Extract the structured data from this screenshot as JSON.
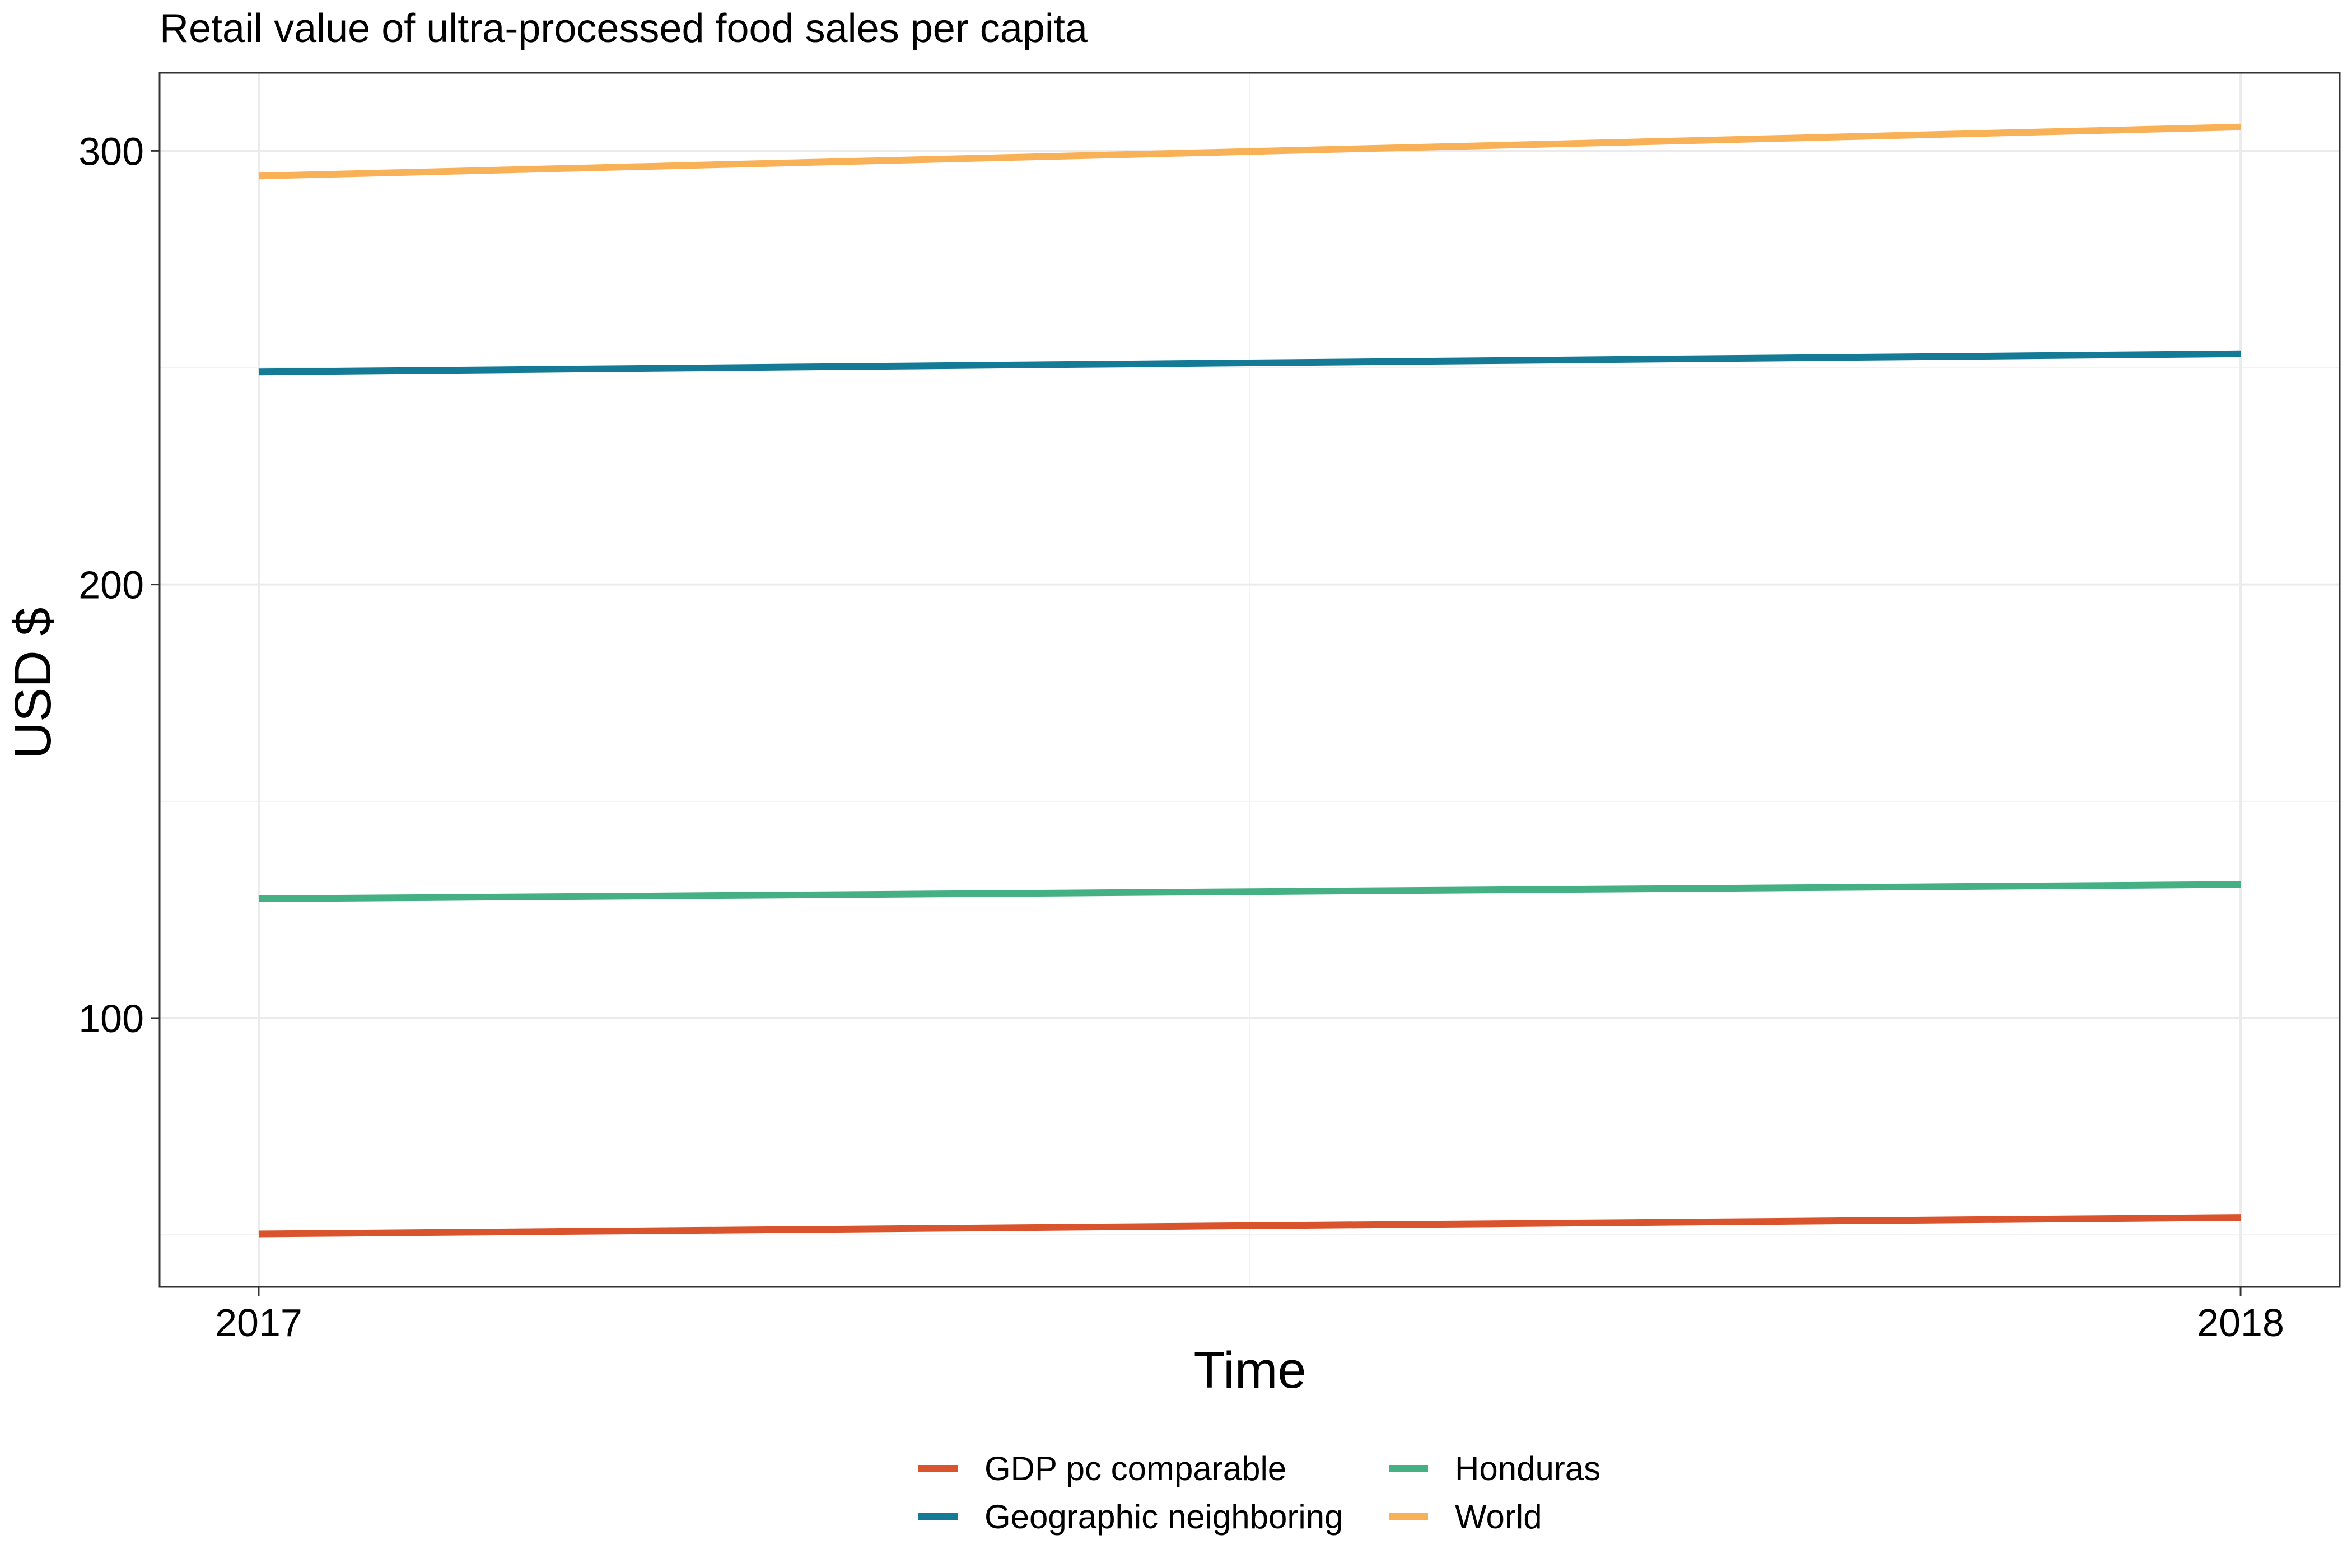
{
  "chart_data": {
    "type": "line",
    "title": "Retail value of ultra-processed food sales per capita",
    "xlabel": "Time",
    "ylabel": "USD $",
    "x": [
      2017,
      2018
    ],
    "x_tick_labels": [
      "2017",
      "2018"
    ],
    "xlim": [
      2016.95,
      2018.05
    ],
    "ylim": [
      38,
      318
    ],
    "y_major_ticks": [
      100,
      200,
      300
    ],
    "y_minor_ticks": [
      50,
      150,
      250
    ],
    "grid": true,
    "legend_position": "bottom",
    "series": [
      {
        "name": "GDP pc comparable",
        "values": [
          50.2,
          54.0
        ],
        "color": "#D9532D"
      },
      {
        "name": "Geographic neighboring",
        "values": [
          249.0,
          253.2
        ],
        "color": "#157A96"
      },
      {
        "name": "Honduras",
        "values": [
          127.5,
          130.8
        ],
        "color": "#45B083"
      },
      {
        "name": "World",
        "values": [
          294.2,
          305.5
        ],
        "color": "#F9B158"
      }
    ]
  }
}
